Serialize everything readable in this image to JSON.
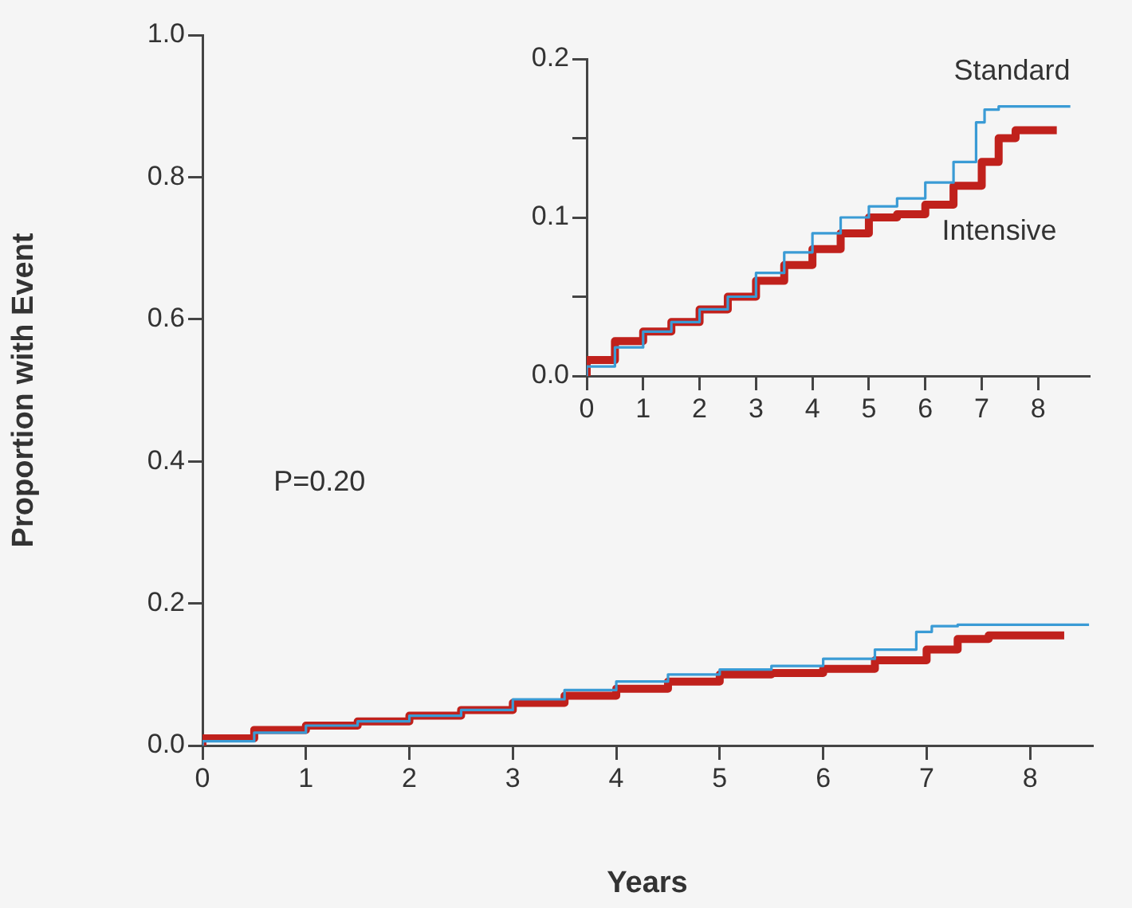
{
  "chart_data": [
    {
      "type": "step",
      "xlabel": "Years",
      "ylabel": "Proportion with Event",
      "annotations": [
        "P=0.20"
      ],
      "xlim": [
        0,
        8.6
      ],
      "xticks": [
        0,
        1,
        2,
        3,
        4,
        5,
        6,
        7,
        8
      ],
      "ylim": [
        0,
        1.0
      ],
      "yticks": [
        {
          "value": 0,
          "label": "0.0"
        },
        {
          "value": 0.2,
          "label": "0.2"
        },
        {
          "value": 0.4,
          "label": "0.4"
        },
        {
          "value": 0.6,
          "label": "0.6"
        },
        {
          "value": 0.8,
          "label": "0.8"
        },
        {
          "value": 1.0,
          "label": "1.0"
        }
      ],
      "grid": false,
      "legend": false,
      "series": [
        {
          "color": "#3a9bd5",
          "x": [
            0,
            0.5,
            1,
            1.5,
            2,
            2.5,
            3,
            3.5,
            4,
            4.5,
            5,
            5.5,
            6,
            6.5,
            6.9,
            7.05,
            7.3,
            7.5,
            8.57
          ],
          "values": [
            0,
            0.006,
            0.018,
            0.028,
            0.034,
            0.042,
            0.05,
            0.065,
            0.078,
            0.09,
            0.1,
            0.107,
            0.112,
            0.122,
            0.135,
            0.16,
            0.168,
            0.17,
            0.17
          ]
        },
        {
          "color": "#c0211c",
          "x": [
            0,
            0.5,
            1,
            1.5,
            2,
            2.5,
            3,
            3.5,
            4,
            4.5,
            5,
            5.5,
            6,
            6.5,
            7,
            7.3,
            7.6,
            7.8,
            8.33
          ],
          "values": [
            0,
            0.01,
            0.022,
            0.028,
            0.034,
            0.042,
            0.05,
            0.06,
            0.07,
            0.08,
            0.09,
            0.1,
            0.102,
            0.108,
            0.12,
            0.135,
            0.15,
            0.155,
            0.155
          ]
        }
      ]
    },
    {
      "type": "step",
      "xlim": [
        0,
        8.9
      ],
      "xticks": [
        0,
        1,
        2,
        3,
        4,
        5,
        6,
        7,
        8
      ],
      "ylim": [
        0,
        0.2
      ],
      "yticks": [
        {
          "value": 0,
          "label": "0.0"
        },
        {
          "value": 0.05,
          "label": null
        },
        {
          "value": 0.1,
          "label": "0.1"
        },
        {
          "value": 0.15,
          "label": null
        },
        {
          "value": 0.2,
          "label": "0.2"
        }
      ],
      "grid": false,
      "legend": false,
      "series": [
        {
          "name": "Standard",
          "color": "#3a9bd5",
          "x": [
            0,
            0.5,
            1,
            1.5,
            2,
            2.5,
            3,
            3.5,
            4,
            4.5,
            5,
            5.5,
            6,
            6.5,
            6.9,
            7.05,
            7.3,
            7.5,
            8.57
          ],
          "values": [
            0,
            0.006,
            0.018,
            0.028,
            0.034,
            0.042,
            0.05,
            0.065,
            0.078,
            0.09,
            0.1,
            0.107,
            0.112,
            0.122,
            0.135,
            0.16,
            0.168,
            0.17,
            0.17
          ]
        },
        {
          "name": "Intensive",
          "color": "#c0211c",
          "x": [
            0,
            0.5,
            1,
            1.5,
            2,
            2.5,
            3,
            3.5,
            4,
            4.5,
            5,
            5.5,
            6,
            6.5,
            7,
            7.3,
            7.6,
            7.8,
            8.33
          ],
          "values": [
            0,
            0.01,
            0.022,
            0.028,
            0.034,
            0.042,
            0.05,
            0.06,
            0.07,
            0.08,
            0.09,
            0.1,
            0.102,
            0.108,
            0.12,
            0.135,
            0.15,
            0.155,
            0.155
          ]
        }
      ]
    }
  ]
}
